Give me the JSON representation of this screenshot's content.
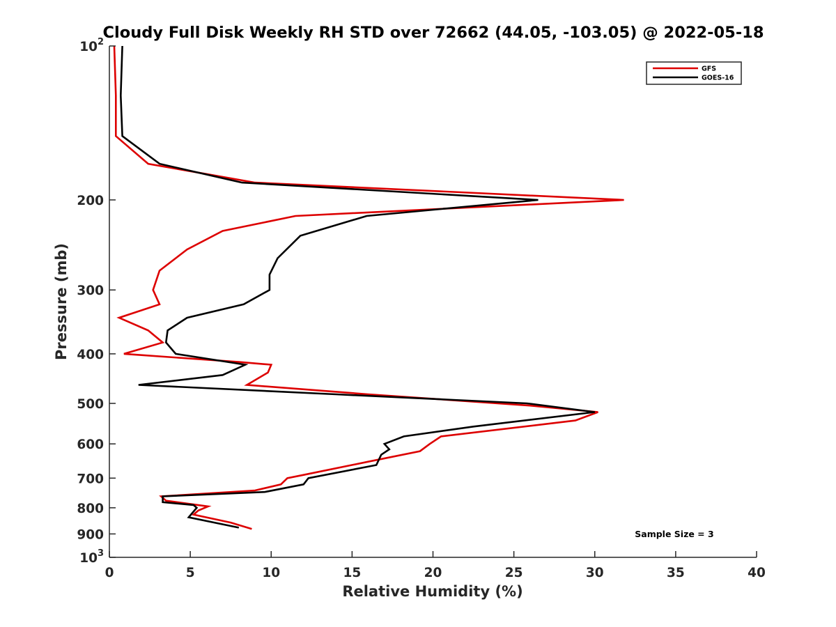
{
  "chart_data": {
    "type": "line",
    "title": "Cloudy Full Disk Weekly RH STD over 72662 (44.05, -103.05) @ 2022-05-18",
    "xlabel": "Relative Humidity (%)",
    "ylabel": "Pressure (mb)",
    "xlim": [
      0,
      40
    ],
    "ylim": [
      100,
      1000
    ],
    "y_scale": "log",
    "y_reversed": true,
    "x_ticks": [
      "0",
      "5",
      "10",
      "15",
      "20",
      "25",
      "30",
      "35",
      "40"
    ],
    "y_ticks": [
      {
        "value": 100,
        "base": "10",
        "exp": "2"
      },
      {
        "value": 200,
        "base": "200",
        "exp": ""
      },
      {
        "value": 300,
        "base": "300",
        "exp": ""
      },
      {
        "value": 400,
        "base": "400",
        "exp": ""
      },
      {
        "value": 500,
        "base": "500",
        "exp": ""
      },
      {
        "value": 600,
        "base": "600",
        "exp": ""
      },
      {
        "value": 700,
        "base": "700",
        "exp": ""
      },
      {
        "value": 800,
        "base": "800",
        "exp": ""
      },
      {
        "value": 900,
        "base": "900",
        "exp": ""
      },
      {
        "value": 1000,
        "base": "10",
        "exp": "3"
      }
    ],
    "grid": false,
    "legend_position": "top-right",
    "annotation": "Sample Size = 3",
    "series": [
      {
        "name": "GFS",
        "color": "#dd0000",
        "points": [
          [
            0.3,
            100
          ],
          [
            0.4,
            125
          ],
          [
            0.4,
            150
          ],
          [
            2.4,
            170
          ],
          [
            9.0,
            185
          ],
          [
            31.8,
            200
          ],
          [
            11.5,
            215
          ],
          [
            7.0,
            230
          ],
          [
            4.8,
            250
          ],
          [
            3.1,
            275
          ],
          [
            2.7,
            300
          ],
          [
            3.1,
            320
          ],
          [
            0.6,
            340
          ],
          [
            2.4,
            360
          ],
          [
            3.3,
            380
          ],
          [
            0.9,
            400
          ],
          [
            8.0,
            415
          ],
          [
            10.0,
            420
          ],
          [
            9.8,
            435
          ],
          [
            8.5,
            460
          ],
          [
            16.0,
            480
          ],
          [
            26.0,
            505
          ],
          [
            30.2,
            520
          ],
          [
            28.8,
            540
          ],
          [
            20.5,
            580
          ],
          [
            19.8,
            600
          ],
          [
            19.2,
            620
          ],
          [
            16.0,
            650
          ],
          [
            12.0,
            690
          ],
          [
            11.0,
            700
          ],
          [
            10.6,
            720
          ],
          [
            9.0,
            740
          ],
          [
            3.2,
            760
          ],
          [
            3.5,
            775
          ],
          [
            6.1,
            795
          ],
          [
            5.5,
            810
          ],
          [
            5.2,
            825
          ],
          [
            7.5,
            855
          ],
          [
            8.8,
            880
          ]
        ]
      },
      {
        "name": "GOES-16",
        "color": "#000000",
        "points": [
          [
            0.8,
            100
          ],
          [
            0.7,
            125
          ],
          [
            0.8,
            150
          ],
          [
            3.1,
            170
          ],
          [
            8.2,
            185
          ],
          [
            26.5,
            200
          ],
          [
            15.9,
            215
          ],
          [
            11.8,
            235
          ],
          [
            10.4,
            260
          ],
          [
            9.9,
            280
          ],
          [
            9.9,
            300
          ],
          [
            8.3,
            320
          ],
          [
            4.8,
            340
          ],
          [
            3.6,
            360
          ],
          [
            3.5,
            380
          ],
          [
            4.1,
            400
          ],
          [
            8.4,
            420
          ],
          [
            7.0,
            440
          ],
          [
            1.8,
            460
          ],
          [
            14.0,
            480
          ],
          [
            25.8,
            500
          ],
          [
            30.0,
            520
          ],
          [
            22.5,
            555
          ],
          [
            18.2,
            580
          ],
          [
            17.0,
            600
          ],
          [
            17.3,
            615
          ],
          [
            16.8,
            630
          ],
          [
            16.5,
            660
          ],
          [
            12.3,
            700
          ],
          [
            12.0,
            720
          ],
          [
            9.6,
            745
          ],
          [
            3.3,
            760
          ],
          [
            3.3,
            780
          ],
          [
            5.2,
            790
          ],
          [
            5.4,
            800
          ],
          [
            4.9,
            835
          ],
          [
            8.0,
            875
          ]
        ]
      }
    ]
  }
}
